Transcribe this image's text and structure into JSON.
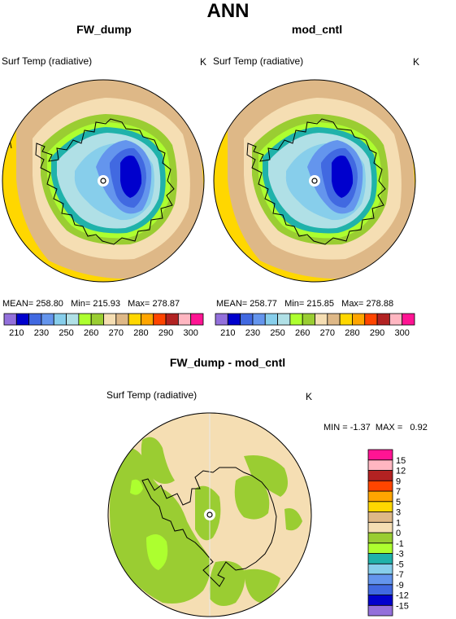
{
  "main_title": "ANN",
  "panels": [
    {
      "title": "FW_dump",
      "field": "Surf Temp (radiative)",
      "unit": "K",
      "stats": {
        "mean_label": "MEAN=",
        "mean": "258.80",
        "min_label": "Min=",
        "min": "215.93",
        "max_label": "Max=",
        "max": "278.87"
      }
    },
    {
      "title": "mod_cntl",
      "field": "Surf Temp (radiative)",
      "unit": "K",
      "stats": {
        "mean_label": "MEAN=",
        "mean": "258.77",
        "min_label": "Min=",
        "min": "215.85",
        "max_label": "Max=",
        "max": "278.88"
      }
    }
  ],
  "diff": {
    "title": "FW_dump - mod_cntl",
    "field": "Surf Temp (radiative)",
    "unit": "K",
    "min_label": "MIN =",
    "min": "-1.37",
    "max_label": "MAX =",
    "max": "0.92"
  },
  "chart_data": [
    {
      "type": "heatmap",
      "title": "FW_dump",
      "projection": "south polar stereographic",
      "colorbar": {
        "orientation": "horizontal",
        "colors": [
          "#9370DB",
          "#0000CD",
          "#4169E1",
          "#6495ED",
          "#87CEEB",
          "#B0E0E6",
          "#ADFF2F",
          "#9ACD32",
          "#F5DEB3",
          "#DEB887",
          "#FFD700",
          "#FFA500",
          "#FF4500",
          "#B22222",
          "#FFB6C1",
          "#FF1493"
        ],
        "tick_labels": [
          "210",
          "230",
          "250",
          "260",
          "270",
          "280",
          "290",
          "300"
        ]
      }
    },
    {
      "type": "heatmap",
      "title": "mod_cntl",
      "projection": "south polar stereographic",
      "colorbar": {
        "orientation": "horizontal",
        "colors": [
          "#9370DB",
          "#0000CD",
          "#4169E1",
          "#6495ED",
          "#87CEEB",
          "#B0E0E6",
          "#ADFF2F",
          "#9ACD32",
          "#F5DEB3",
          "#DEB887",
          "#FFD700",
          "#FFA500",
          "#FF4500",
          "#B22222",
          "#FFB6C1",
          "#FF1493"
        ],
        "tick_labels": [
          "210",
          "230",
          "250",
          "260",
          "270",
          "280",
          "290",
          "300"
        ]
      }
    },
    {
      "type": "heatmap",
      "title": "FW_dump - mod_cntl",
      "projection": "south polar stereographic",
      "colorbar": {
        "orientation": "vertical",
        "colors": [
          "#9370DB",
          "#0000CD",
          "#4169E1",
          "#6495ED",
          "#87CEEB",
          "#20B2AA",
          "#ADFF2F",
          "#9ACD32",
          "#F5DEB3",
          "#DEB887",
          "#FFD700",
          "#FFA500",
          "#FF4500",
          "#B22222",
          "#FFB6C1",
          "#FF1493"
        ],
        "tick_labels": [
          "-15",
          "-12",
          "-9",
          "-7",
          "-5",
          "-3",
          "-1",
          "0",
          "1",
          "3",
          "5",
          "7",
          "9",
          "12",
          "15"
        ]
      }
    }
  ]
}
